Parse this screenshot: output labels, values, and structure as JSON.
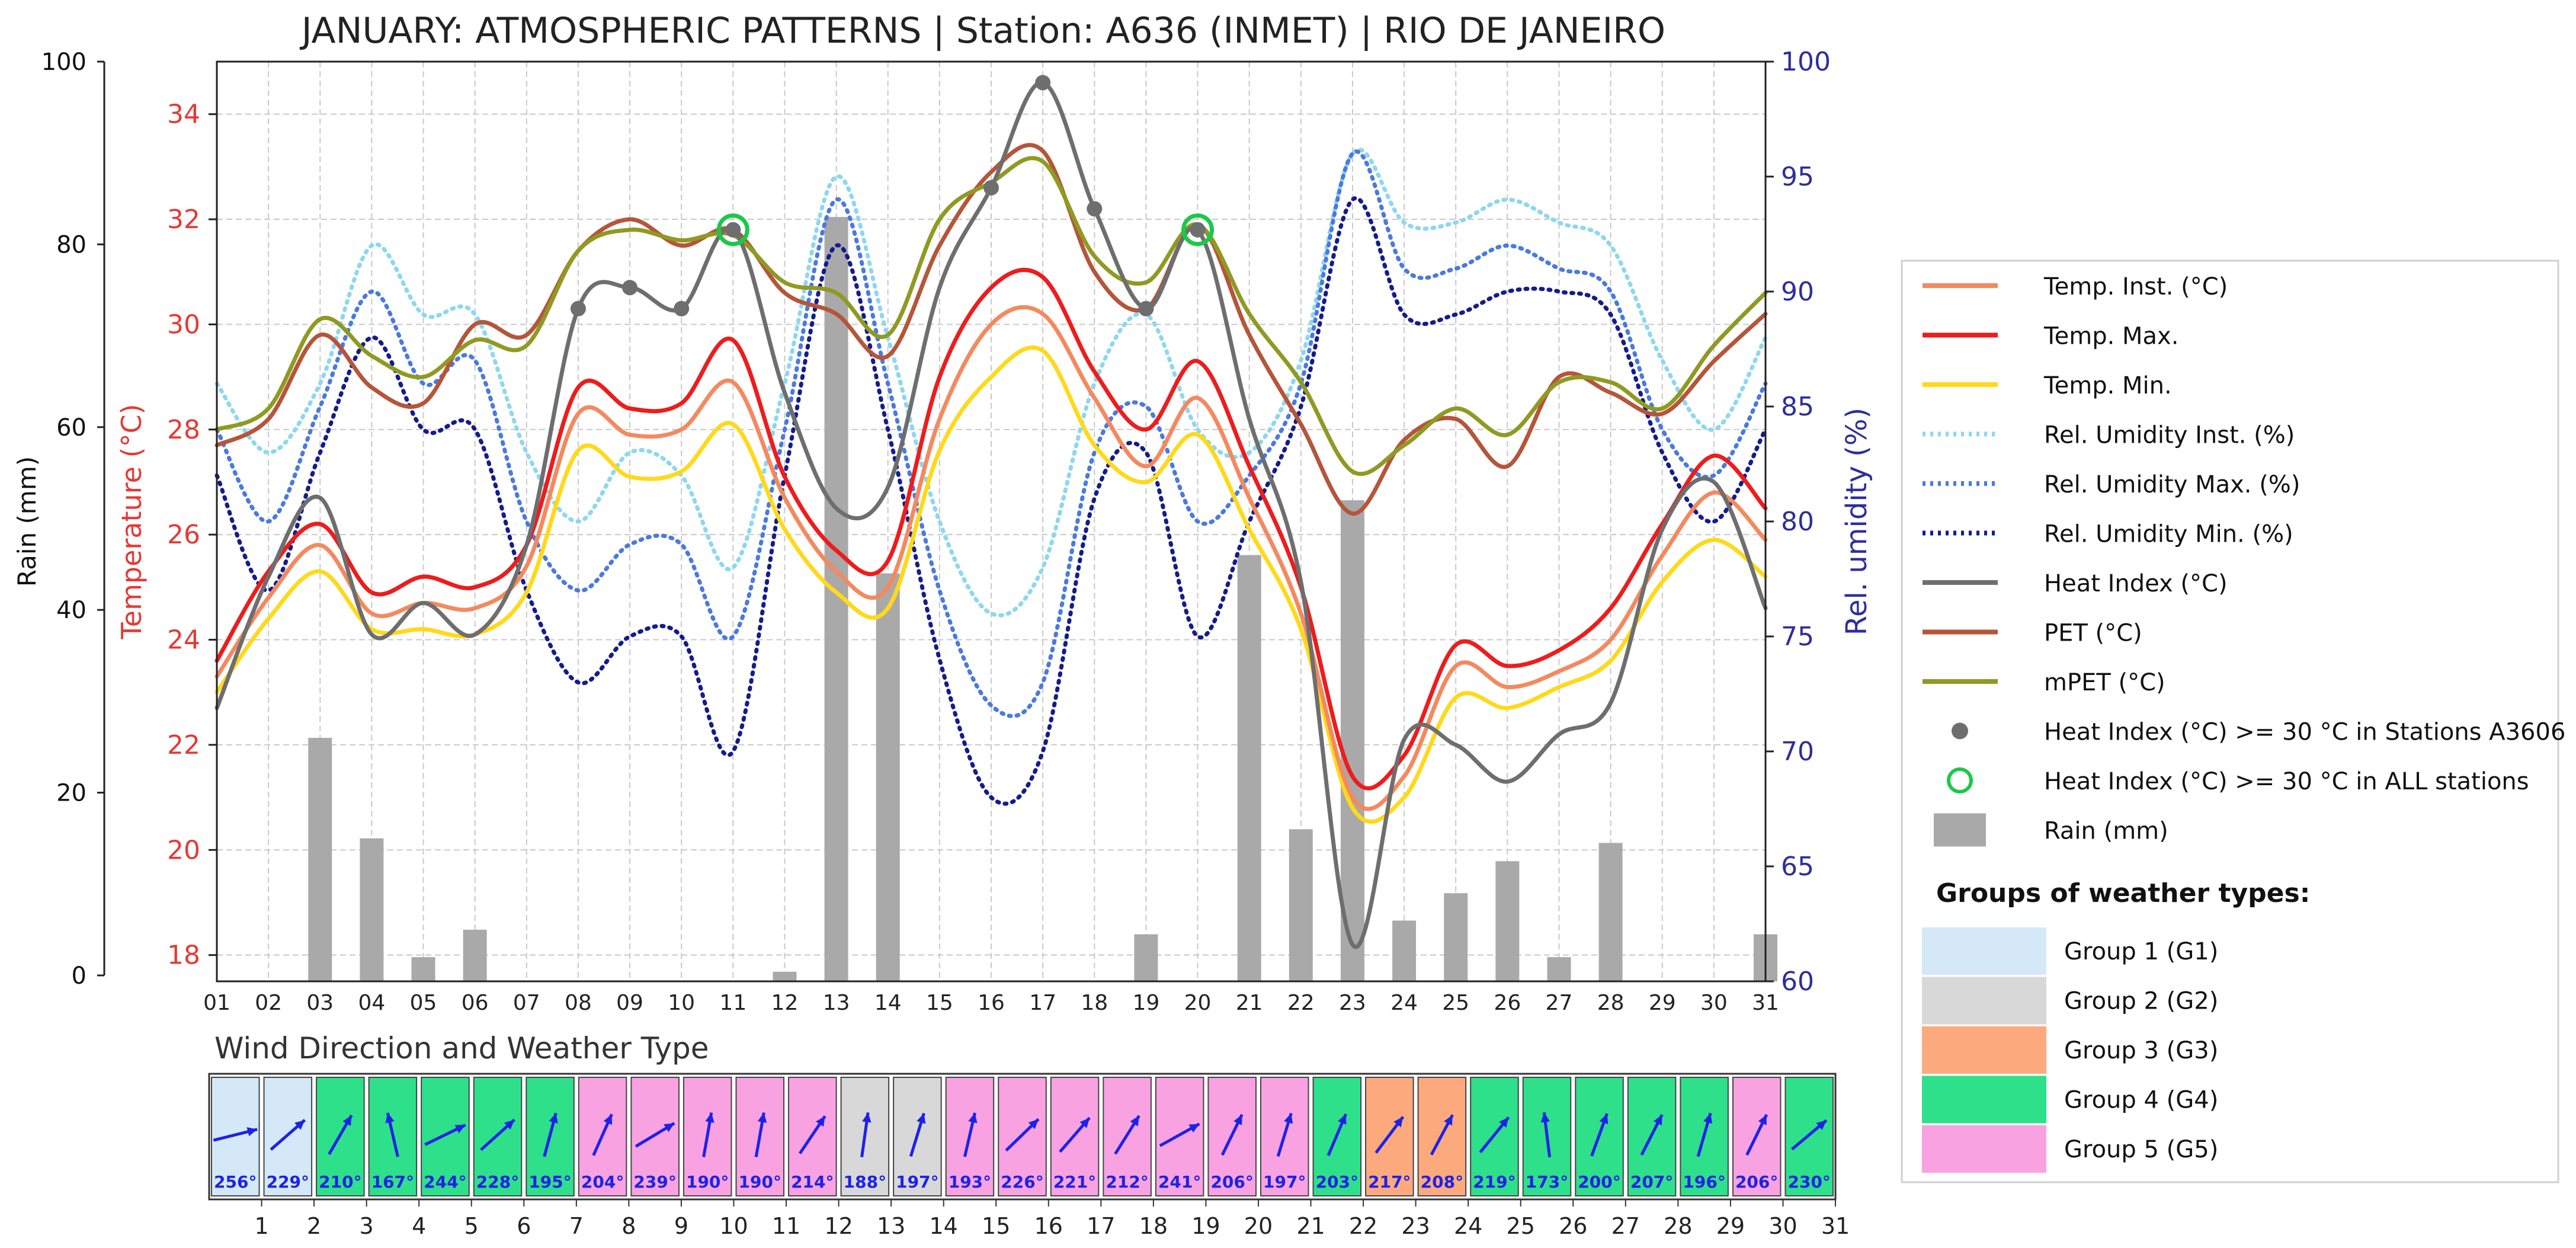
{
  "colors": {
    "temp_inst": "#f4895f",
    "temp_max": "#ee1c1c",
    "temp_min": "#ffd91a",
    "rh_inst": "#8ed7ef",
    "rh_max": "#4a79e0",
    "rh_min": "#141c8c",
    "heat_index": "#6e6e6e",
    "pet": "#b5553a",
    "mpet": "#8f9a22",
    "rain": "#a9a9a9",
    "temp_axis": "#e53935",
    "rh_axis": "#2e2e9a",
    "circle": "#19c94a",
    "wind_arrow": "#1d22e6",
    "g1": "#d4e8f8",
    "g2": "#d8d8d8",
    "g3": "#fcaa7d",
    "g4": "#2ee08a",
    "g5": "#f8a2e2"
  },
  "chart_data": [
    {
      "type": "line",
      "title": "JANUARY: ATMOSPHERIC PATTERNS | Station: A636 (INMET) | RIO DE JANEIRO",
      "x": [
        "01",
        "02",
        "03",
        "04",
        "05",
        "06",
        "07",
        "08",
        "09",
        "10",
        "11",
        "12",
        "13",
        "14",
        "15",
        "16",
        "17",
        "18",
        "19",
        "20",
        "21",
        "22",
        "23",
        "24",
        "25",
        "26",
        "27",
        "28",
        "29",
        "30",
        "31"
      ],
      "ylabel_rain": "Rain (mm)",
      "ylabel_temp": "Temperature (°C)",
      "ylabel_rh": "Rel. umidity (%)",
      "ylim_rain": [
        0,
        100
      ],
      "ylim_temp": [
        17.5,
        35
      ],
      "ylim_rh": [
        60,
        100
      ],
      "rain_ticks": [
        "0",
        "20",
        "40",
        "60",
        "80",
        "100"
      ],
      "temp_ticks": [
        "18",
        "20",
        "22",
        "24",
        "26",
        "28",
        "30",
        "32",
        "34"
      ],
      "rh_ticks": [
        "60",
        "65",
        "70",
        "75",
        "80",
        "85",
        "90",
        "95",
        "100"
      ],
      "grid": true,
      "series": [
        {
          "name": "Temp. Inst. (°C)",
          "key": "temp_inst",
          "axis": "temp",
          "style": "solid",
          "values": [
            23.3,
            24.8,
            25.8,
            24.5,
            24.7,
            24.6,
            25.4,
            28.3,
            27.9,
            28.0,
            28.9,
            26.7,
            25.3,
            25.0,
            28.2,
            30.0,
            30.2,
            28.6,
            27.3,
            28.6,
            26.7,
            24.5,
            21.0,
            21.4,
            23.5,
            23.1,
            23.4,
            24.0,
            25.6,
            26.8,
            25.9
          ]
        },
        {
          "name": "Temp. Max. (°C)",
          "key": "temp_max",
          "axis": "temp",
          "style": "solid",
          "values": [
            23.6,
            25.3,
            26.2,
            24.9,
            25.2,
            25.0,
            25.8,
            28.8,
            28.4,
            28.5,
            29.7,
            27.1,
            25.7,
            25.5,
            29.0,
            30.7,
            30.9,
            29.1,
            28.0,
            29.3,
            27.3,
            25.0,
            21.4,
            21.8,
            23.9,
            23.5,
            23.8,
            24.6,
            26.2,
            27.5,
            26.5
          ]
        },
        {
          "name": "Temp. Min. (°C)",
          "key": "temp_min",
          "axis": "temp",
          "style": "solid",
          "values": [
            23.0,
            24.4,
            25.3,
            24.2,
            24.2,
            24.1,
            24.9,
            27.6,
            27.1,
            27.2,
            28.1,
            26.1,
            24.9,
            24.6,
            27.6,
            29.0,
            29.5,
            27.7,
            27.0,
            27.9,
            26.1,
            24.2,
            20.8,
            21.0,
            22.9,
            22.7,
            23.1,
            23.6,
            25.1,
            25.9,
            25.2
          ]
        },
        {
          "name": "Rel. Umidity Inst. (%)",
          "key": "rh_inst",
          "axis": "rh",
          "style": "dotted",
          "values": [
            86,
            83,
            86,
            92,
            89,
            89,
            83,
            80,
            83,
            82,
            78,
            86,
            95,
            88,
            80,
            76,
            78,
            86,
            89,
            84,
            83,
            87,
            96,
            93,
            93,
            94,
            93,
            92,
            87,
            84,
            88
          ]
        },
        {
          "name": "Rel. Umidity Max. (%)",
          "key": "rh_max",
          "axis": "rh",
          "style": "dotted",
          "values": [
            84,
            80,
            85,
            90,
            86,
            87,
            80,
            77,
            79,
            79,
            75,
            84,
            94,
            86,
            77,
            72,
            73,
            83,
            85,
            80,
            82,
            86,
            96,
            91,
            91,
            92,
            91,
            90,
            84,
            82,
            86
          ]
        },
        {
          "name": "Rel. Umidity Min. (%)",
          "key": "rh_min",
          "axis": "rh",
          "style": "dotted",
          "values": [
            82,
            77,
            83,
            88,
            84,
            84,
            77,
            73,
            75,
            75,
            70,
            82,
            92,
            84,
            74,
            68,
            70,
            81,
            83,
            75,
            80,
            85,
            94,
            89,
            89,
            90,
            90,
            89,
            83,
            80,
            84
          ]
        },
        {
          "name": "Heat Index (°C)",
          "key": "heat_index",
          "axis": "temp",
          "style": "solid",
          "values": [
            22.7,
            25.2,
            26.7,
            24.1,
            24.7,
            24.1,
            25.8,
            30.3,
            30.7,
            30.3,
            31.8,
            28.7,
            26.5,
            26.9,
            30.7,
            32.6,
            34.6,
            32.2,
            30.3,
            31.8,
            28.2,
            25.1,
            18.2,
            22.1,
            22.0,
            21.3,
            22.2,
            22.8,
            26.1,
            27.0,
            24.6
          ]
        },
        {
          "name": "PET (°C)",
          "key": "pet",
          "axis": "temp",
          "style": "solid",
          "values": [
            27.7,
            28.2,
            29.8,
            28.8,
            28.5,
            30.0,
            29.8,
            31.4,
            32.0,
            31.5,
            31.8,
            30.6,
            30.2,
            29.4,
            31.5,
            32.9,
            33.3,
            31.0,
            30.3,
            31.9,
            29.8,
            28.1,
            26.4,
            27.8,
            28.2,
            27.3,
            29.0,
            28.7,
            28.3,
            29.3,
            30.2
          ]
        },
        {
          "name": "mPET  (°C)",
          "key": "mpet",
          "axis": "temp",
          "style": "solid",
          "values": [
            28.0,
            28.4,
            30.1,
            29.4,
            29.0,
            29.7,
            29.6,
            31.4,
            31.8,
            31.6,
            31.7,
            30.8,
            30.6,
            29.8,
            32.0,
            32.7,
            33.1,
            31.3,
            30.8,
            31.9,
            30.2,
            28.9,
            27.2,
            27.7,
            28.4,
            27.9,
            28.9,
            28.9,
            28.4,
            29.6,
            30.6
          ]
        }
      ],
      "heat_index_dots_x": [
        "08",
        "09",
        "10",
        "11",
        "16",
        "17",
        "18",
        "19",
        "20"
      ],
      "all_stations_circles_x": [
        "11",
        "20"
      ],
      "rain": {
        "name": "Rain (mm)",
        "values": [
          0,
          0,
          26,
          15,
          2,
          5,
          0,
          0,
          0,
          0,
          0,
          0.4,
          83,
          44,
          0,
          0,
          0,
          0,
          4.5,
          0,
          46,
          16,
          52,
          6,
          9,
          12.5,
          2,
          14.5,
          0,
          0,
          4.5
        ]
      },
      "legend_position": "right"
    }
  ],
  "legend": {
    "items": [
      {
        "label": "Temp. Inst. (°C)",
        "key": "temp_inst",
        "kind": "line"
      },
      {
        "label": "Temp. Max.",
        "key": "temp_max",
        "kind": "line"
      },
      {
        "label": "Temp. Min.",
        "key": "temp_min",
        "kind": "line"
      },
      {
        "label": "Rel. Umidity Inst. (%)",
        "key": "rh_inst",
        "kind": "dotted"
      },
      {
        "label": "Rel. Umidity Max. (%)",
        "key": "rh_max",
        "kind": "dotted"
      },
      {
        "label": "Rel. Umidity Min. (%)",
        "key": "rh_min",
        "kind": "dotted"
      },
      {
        "label": "Heat Index (°C)",
        "key": "heat_index",
        "kind": "line"
      },
      {
        "label": "PET (°C)",
        "key": "pet",
        "kind": "line"
      },
      {
        "label": "mPET  (°C)",
        "key": "mpet",
        "kind": "line"
      },
      {
        "label": "Heat Index (°C) >= 30 °C in Stations A3606",
        "key": "heat_index",
        "kind": "dot"
      },
      {
        "label": "Heat Index (°C) >= 30 °C in ALL stations",
        "key": "circle",
        "kind": "circle"
      },
      {
        "label": "Rain (mm)",
        "key": "rain",
        "kind": "bar"
      }
    ],
    "groups_title": "Groups of weather types:",
    "groups": [
      {
        "label": "Group 1 (G1)",
        "key": "g1"
      },
      {
        "label": "Group 2 (G2)",
        "key": "g2"
      },
      {
        "label": "Group 3 (G3)",
        "key": "g3"
      },
      {
        "label": "Group 4 (G4)",
        "key": "g4"
      },
      {
        "label": "Group 5 (G5)",
        "key": "g5"
      }
    ]
  },
  "wind": {
    "title": "Wind Direction and Weather Type",
    "days": [
      {
        "deg": "256°",
        "dir": 256,
        "group": "g1"
      },
      {
        "deg": "229°",
        "dir": 229,
        "group": "g1"
      },
      {
        "deg": "210°",
        "dir": 210,
        "group": "g4"
      },
      {
        "deg": "167°",
        "dir": 167,
        "group": "g4"
      },
      {
        "deg": "244°",
        "dir": 244,
        "group": "g4"
      },
      {
        "deg": "228°",
        "dir": 228,
        "group": "g4"
      },
      {
        "deg": "195°",
        "dir": 195,
        "group": "g4"
      },
      {
        "deg": "204°",
        "dir": 204,
        "group": "g5"
      },
      {
        "deg": "239°",
        "dir": 239,
        "group": "g5"
      },
      {
        "deg": "190°",
        "dir": 190,
        "group": "g5"
      },
      {
        "deg": "190°",
        "dir": 190,
        "group": "g5"
      },
      {
        "deg": "214°",
        "dir": 214,
        "group": "g5"
      },
      {
        "deg": "188°",
        "dir": 188,
        "group": "g2"
      },
      {
        "deg": "197°",
        "dir": 197,
        "group": "g2"
      },
      {
        "deg": "193°",
        "dir": 193,
        "group": "g5"
      },
      {
        "deg": "226°",
        "dir": 226,
        "group": "g5"
      },
      {
        "deg": "221°",
        "dir": 221,
        "group": "g5"
      },
      {
        "deg": "212°",
        "dir": 212,
        "group": "g5"
      },
      {
        "deg": "241°",
        "dir": 241,
        "group": "g5"
      },
      {
        "deg": "206°",
        "dir": 206,
        "group": "g5"
      },
      {
        "deg": "197°",
        "dir": 197,
        "group": "g5"
      },
      {
        "deg": "203°",
        "dir": 203,
        "group": "g4"
      },
      {
        "deg": "217°",
        "dir": 217,
        "group": "g3"
      },
      {
        "deg": "208°",
        "dir": 208,
        "group": "g3"
      },
      {
        "deg": "219°",
        "dir": 219,
        "group": "g4"
      },
      {
        "deg": "173°",
        "dir": 173,
        "group": "g4"
      },
      {
        "deg": "200°",
        "dir": 200,
        "group": "g4"
      },
      {
        "deg": "207°",
        "dir": 207,
        "group": "g4"
      },
      {
        "deg": "196°",
        "dir": 196,
        "group": "g4"
      },
      {
        "deg": "206°",
        "dir": 206,
        "group": "g5"
      },
      {
        "deg": "230°",
        "dir": 230,
        "group": "g4"
      }
    ],
    "axis_labels": [
      "1",
      "2",
      "3",
      "4",
      "5",
      "6",
      "7",
      "8",
      "9",
      "10",
      "11",
      "12",
      "13",
      "14",
      "15",
      "16",
      "17",
      "18",
      "19",
      "20",
      "21",
      "22",
      "23",
      "24",
      "25",
      "26",
      "27",
      "28",
      "29",
      "30",
      "31"
    ]
  }
}
